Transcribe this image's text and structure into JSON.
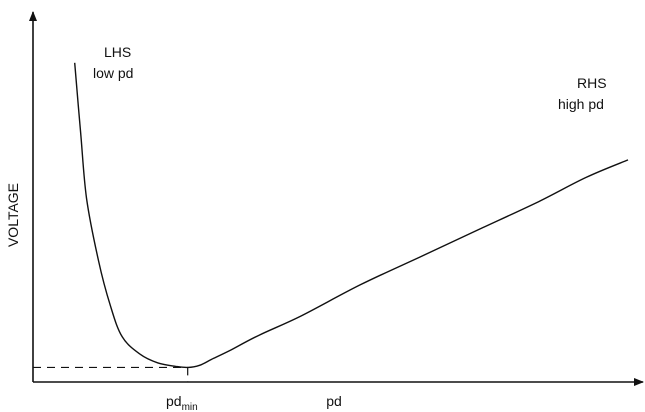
{
  "chart_data": {
    "type": "line",
    "title": "",
    "xlabel": "pd",
    "ylabel": "VOLTAGE",
    "x_tick_label": {
      "main": "pd",
      "subscript": "min"
    },
    "grid": false,
    "legend": "none",
    "annotations": [
      {
        "line1": "LHS",
        "line2": "low pd"
      },
      {
        "line1": "RHS",
        "line2": "high pd"
      }
    ],
    "series": [
      {
        "x": [
          0.07,
          0.08,
          0.09,
          0.11,
          0.13,
          0.15,
          0.18,
          0.21,
          0.24,
          0.26,
          0.28,
          0.3,
          0.33,
          0.38,
          0.45,
          0.55,
          0.65,
          0.75,
          0.85,
          0.93,
          1.0
        ],
        "y": [
          0.92,
          0.72,
          0.53,
          0.35,
          0.22,
          0.13,
          0.08,
          0.055,
          0.045,
          0.042,
          0.048,
          0.065,
          0.09,
          0.135,
          0.19,
          0.28,
          0.36,
          0.44,
          0.52,
          0.59,
          0.64
        ]
      }
    ],
    "minimum": {
      "x": 0.26,
      "y": 0.042
    },
    "xlim": [
      0,
      1
    ],
    "ylim": [
      0,
      1
    ],
    "colors": {
      "line": "#111111",
      "axis": "#111111",
      "background": "#ffffff"
    }
  }
}
